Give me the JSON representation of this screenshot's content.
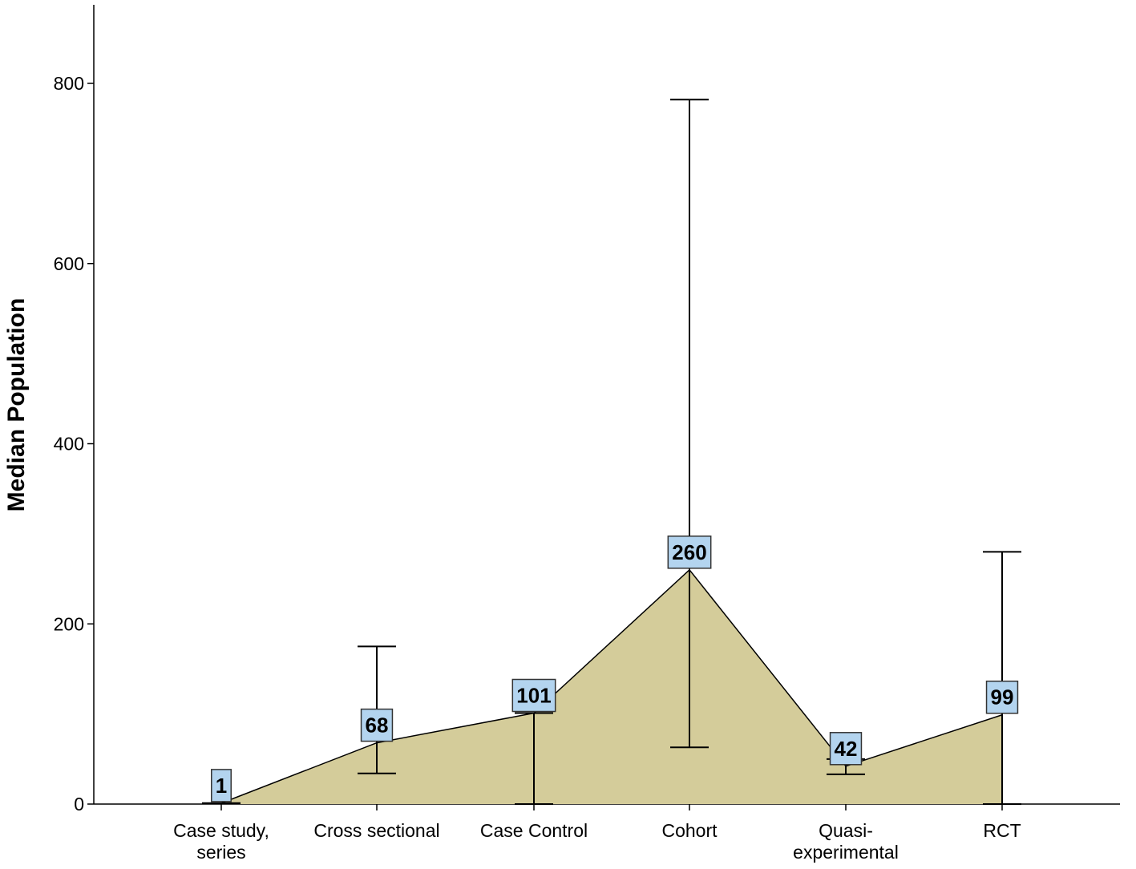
{
  "chart_data": {
    "type": "area",
    "ylabel": "Median Population",
    "xlabel": "",
    "ylim": [
      0,
      880
    ],
    "yticks": [
      0,
      200,
      400,
      600,
      800
    ],
    "categories": [
      [
        "Case study,",
        "series"
      ],
      [
        "Cross sectional"
      ],
      [
        "Case Control"
      ],
      [
        "Cohort"
      ],
      [
        "Quasi-",
        "experimental"
      ],
      [
        "RCT"
      ]
    ],
    "values": [
      1,
      68,
      101,
      260,
      42,
      99
    ],
    "value_labels": [
      "1",
      "68",
      "101",
      "260",
      "42",
      "99"
    ],
    "error_bars": [
      {
        "low": 1,
        "high": 1
      },
      {
        "low": 34,
        "high": 175
      },
      {
        "low": 0,
        "high": 101
      },
      {
        "low": 63,
        "high": 782
      },
      {
        "low": 33,
        "high": 50
      },
      {
        "low": 0,
        "high": 280
      }
    ],
    "colors": {
      "area_fill": "#d4cc9a",
      "label_box": "#b3d4ef",
      "line": "#000000"
    },
    "grid": false,
    "legend": "none"
  }
}
